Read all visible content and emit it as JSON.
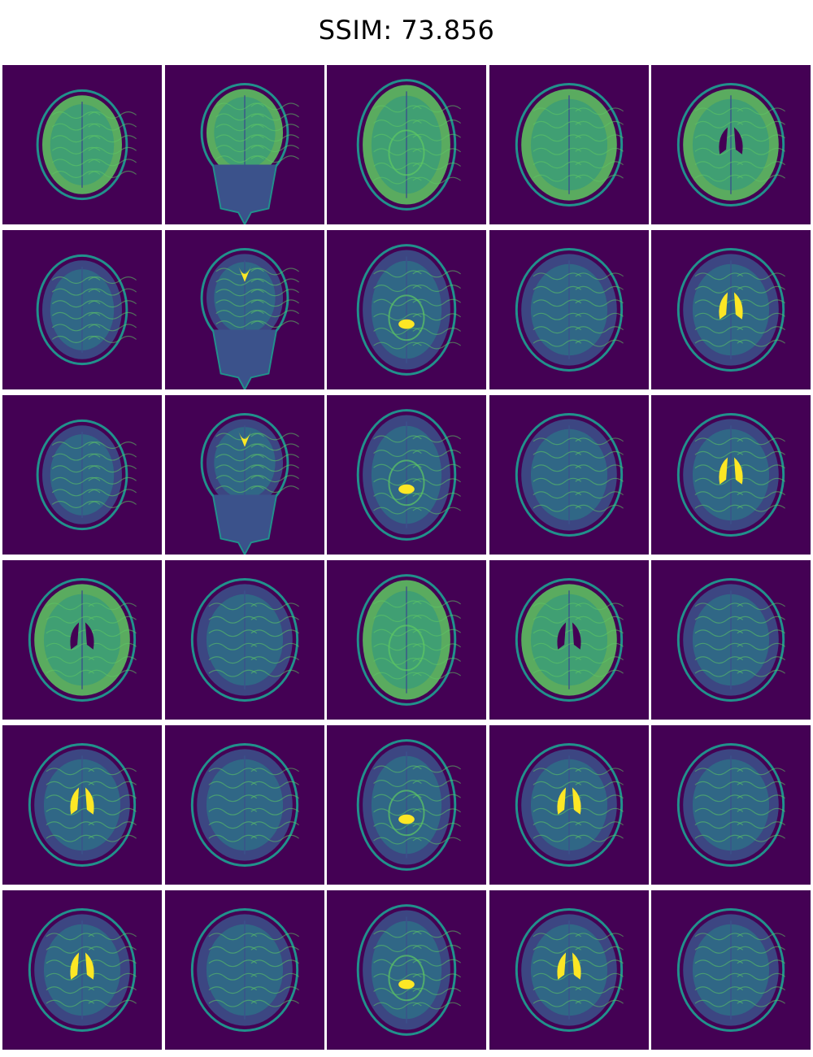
{
  "title": "SSIM: 73.856",
  "grid": {
    "rows": 6,
    "cols": 5
  },
  "colormap": {
    "background": "#440154",
    "low": "#3b528b",
    "mid": "#21918c",
    "high": "#5ec962",
    "peak": "#fde725"
  },
  "tiles": [
    {
      "view": "axial-top",
      "contrast": "t1"
    },
    {
      "view": "coronal",
      "contrast": "t1"
    },
    {
      "view": "coronal-post",
      "contrast": "t1"
    },
    {
      "view": "axial",
      "contrast": "t1"
    },
    {
      "view": "axial-vent",
      "contrast": "t1"
    },
    {
      "view": "axial-top",
      "contrast": "t2"
    },
    {
      "view": "coronal",
      "contrast": "t2"
    },
    {
      "view": "coronal-post",
      "contrast": "t2"
    },
    {
      "view": "axial",
      "contrast": "t2"
    },
    {
      "view": "axial-vent",
      "contrast": "t2"
    },
    {
      "view": "axial-top",
      "contrast": "t2"
    },
    {
      "view": "coronal",
      "contrast": "t2"
    },
    {
      "view": "coronal-post",
      "contrast": "t2"
    },
    {
      "view": "axial",
      "contrast": "t2"
    },
    {
      "view": "axial-vent",
      "contrast": "t2"
    },
    {
      "view": "axial-vent",
      "contrast": "t1"
    },
    {
      "view": "axial",
      "contrast": "pd"
    },
    {
      "view": "coronal-post",
      "contrast": "t1"
    },
    {
      "view": "axial-vent",
      "contrast": "t1"
    },
    {
      "view": "axial",
      "contrast": "pd"
    },
    {
      "view": "axial-vent",
      "contrast": "t2"
    },
    {
      "view": "axial",
      "contrast": "pd"
    },
    {
      "view": "coronal-post",
      "contrast": "t2"
    },
    {
      "view": "axial-vent",
      "contrast": "t2"
    },
    {
      "view": "axial",
      "contrast": "pd"
    },
    {
      "view": "axial-vent",
      "contrast": "t2"
    },
    {
      "view": "axial",
      "contrast": "pd"
    },
    {
      "view": "coronal-post",
      "contrast": "t2"
    },
    {
      "view": "axial-vent",
      "contrast": "t2"
    },
    {
      "view": "axial",
      "contrast": "pd"
    }
  ]
}
